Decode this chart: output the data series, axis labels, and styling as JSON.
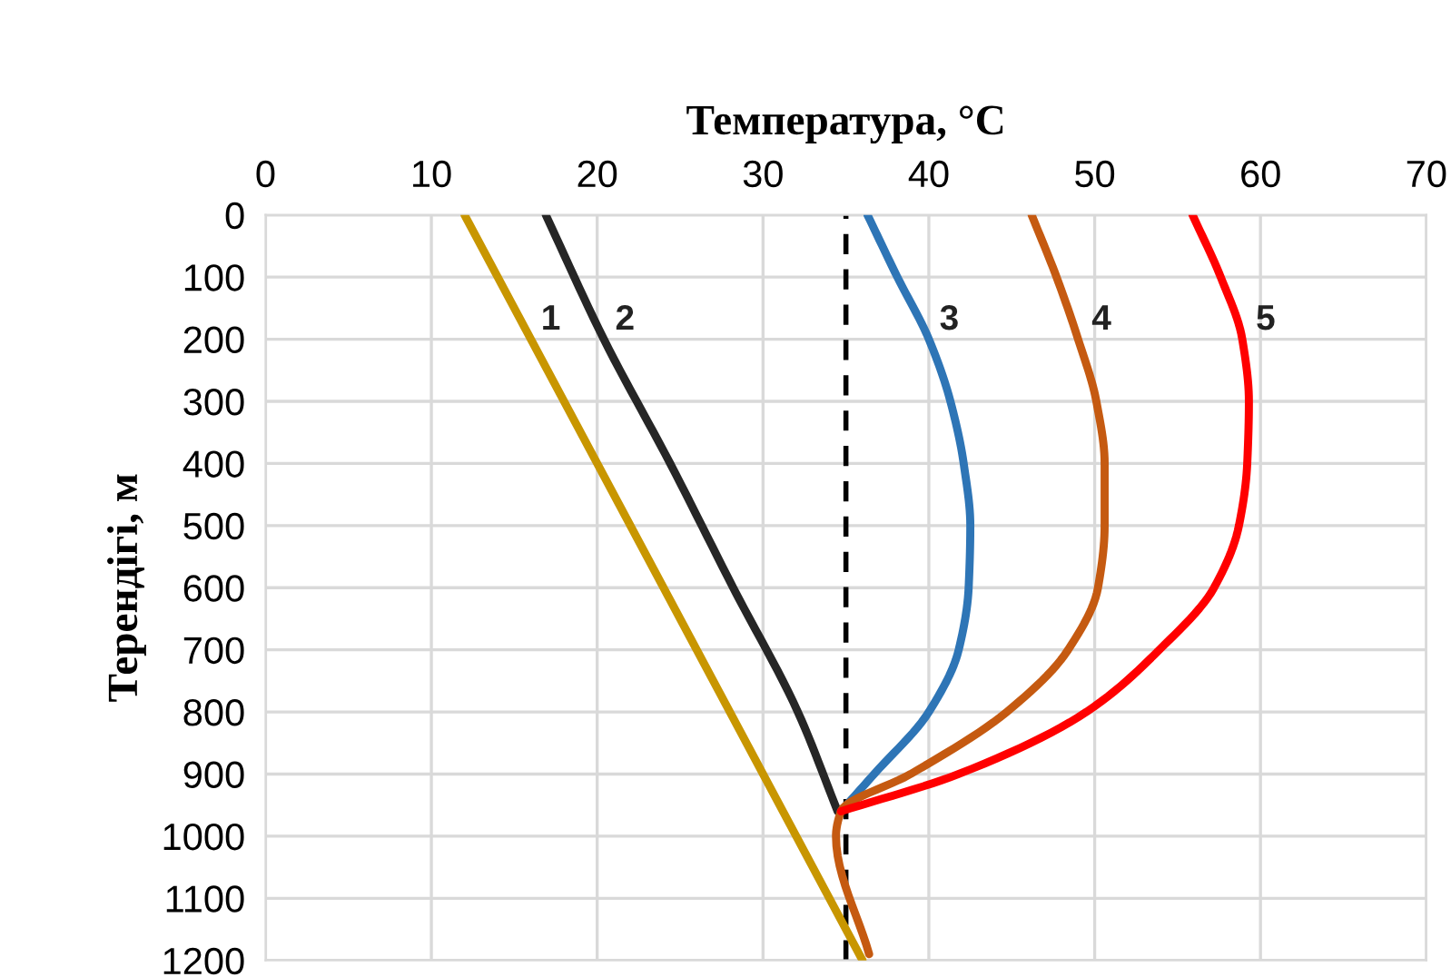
{
  "chart_data": {
    "type": "line",
    "xlabel": "Температура, °С",
    "ylabel": "Терендігі, м",
    "xlim": [
      0,
      70
    ],
    "xticks": [
      0,
      10,
      20,
      30,
      40,
      50,
      60,
      70
    ],
    "ylim": [
      1200,
      0
    ],
    "yticks": [
      0,
      100,
      200,
      300,
      400,
      500,
      600,
      700,
      800,
      900,
      1000,
      1100,
      1200
    ],
    "grid": true,
    "line_style": "solid",
    "marker": "none",
    "series": [
      {
        "name": "1",
        "color": "#c89600",
        "x": [
          12.0,
          36.0
        ],
        "values": [
          0,
          1200
        ]
      },
      {
        "name": "2",
        "color": "#262626",
        "x": [
          16.9,
          20.4,
          24.4,
          28.2,
          32.1,
          34.5
        ],
        "values": [
          0,
          200,
          400,
          600,
          800,
          960
        ]
      },
      {
        "name": "3",
        "color": "#2e75b6",
        "x": [
          36.3,
          38.1,
          40.0,
          41.3,
          42.1,
          42.5,
          42.4,
          41.8,
          40.0,
          36.7,
          34.7
        ],
        "values": [
          0,
          100,
          200,
          300,
          400,
          500,
          600,
          700,
          800,
          900,
          960
        ]
      },
      {
        "name": "4",
        "color": "#c55a11",
        "x": [
          46.2,
          47.7,
          49.0,
          50.1,
          50.6,
          50.6,
          50.2,
          48.4,
          44.7,
          38.9,
          34.7,
          34.4,
          36.4
        ],
        "values": [
          0,
          100,
          200,
          300,
          400,
          500,
          600,
          700,
          800,
          900,
          960,
          1000,
          1190
        ]
      },
      {
        "name": "5",
        "color": "#ff0000",
        "x": [
          55.9,
          57.6,
          58.9,
          59.3,
          59.2,
          58.7,
          57.2,
          53.9,
          49.5,
          41.8,
          34.7
        ],
        "values": [
          0,
          100,
          200,
          300,
          400,
          500,
          600,
          700,
          800,
          900,
          960
        ]
      }
    ],
    "ref_lines": [
      {
        "axis": "x",
        "value": 35,
        "color": "#000000",
        "line_style": "dashed"
      }
    ],
    "legend": false
  }
}
